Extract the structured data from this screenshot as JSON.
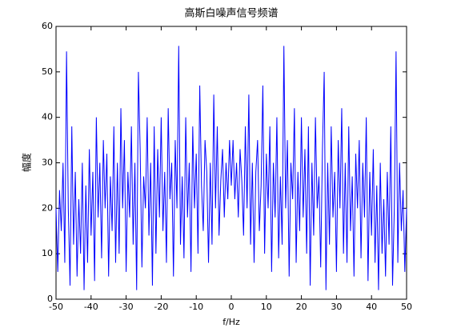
{
  "chart_data": {
    "type": "line",
    "title": "高斯白噪声信号频谱",
    "xlabel": "f/Hz",
    "ylabel": "幅度",
    "x": [
      -50,
      -49.5,
      -49,
      -48.5,
      -48,
      -47.5,
      -47,
      -46.5,
      -46,
      -45.5,
      -45,
      -44.5,
      -44,
      -43.5,
      -43,
      -42.5,
      -42,
      -41.5,
      -41,
      -40.5,
      -40,
      -39.5,
      -39,
      -38.5,
      -38,
      -37.5,
      -37,
      -36.5,
      -36,
      -35.5,
      -35,
      -34.5,
      -34,
      -33.5,
      -33,
      -32.5,
      -32,
      -31.5,
      -31,
      -30.5,
      -30,
      -29.5,
      -29,
      -28.5,
      -28,
      -27.5,
      -27,
      -26.5,
      -26,
      -25.5,
      -25,
      -24.5,
      -24,
      -23.5,
      -23,
      -22.5,
      -22,
      -21.5,
      -21,
      -20.5,
      -20,
      -19.5,
      -19,
      -18.5,
      -18,
      -17.5,
      -17,
      -16.5,
      -16,
      -15.5,
      -15,
      -14.5,
      -14,
      -13.5,
      -13,
      -12.5,
      -12,
      -11.5,
      -11,
      -10.5,
      -10,
      -9.5,
      -9,
      -8.5,
      -8,
      -7.5,
      -7,
      -6.5,
      -6,
      -5.5,
      -5,
      -4.5,
      -4,
      -3.5,
      -3,
      -2.5,
      -2,
      -1.5,
      -1,
      -0.5,
      0,
      0.5,
      1,
      1.5,
      2,
      2.5,
      3,
      3.5,
      4,
      4.5,
      5,
      5.5,
      6,
      6.5,
      7,
      7.5,
      8,
      8.5,
      9,
      9.5,
      10,
      10.5,
      11,
      11.5,
      12,
      12.5,
      13,
      13.5,
      14,
      14.5,
      15,
      15.5,
      16,
      16.5,
      17,
      17.5,
      18,
      18.5,
      19,
      19.5,
      20,
      20.5,
      21,
      21.5,
      22,
      22.5,
      23,
      23.5,
      24,
      24.5,
      25,
      25.5,
      26,
      26.5,
      27,
      27.5,
      28,
      28.5,
      29,
      29.5,
      30,
      30.5,
      31,
      31.5,
      32,
      32.5,
      33,
      33.5,
      34,
      34.5,
      35,
      35.5,
      36,
      36.5,
      37,
      37.5,
      38,
      38.5,
      39,
      39.5,
      40,
      40.5,
      41,
      41.5,
      42,
      42.5,
      43,
      43.5,
      44,
      44.5,
      45,
      45.5,
      46,
      46.5,
      47,
      47.5,
      48,
      48.5,
      49,
      49.5,
      50
    ],
    "series": [
      {
        "color": "#0000ff",
        "values": [
          20,
          6,
          24,
          15,
          30,
          8,
          54.5,
          20,
          3,
          38,
          12,
          28,
          5,
          22,
          10,
          30,
          2,
          25,
          8,
          33,
          14,
          28,
          4,
          40,
          18,
          30,
          9,
          35,
          20,
          32,
          5,
          27,
          15,
          38,
          8,
          30,
          10,
          42,
          20,
          35,
          6,
          28,
          18,
          38,
          12,
          30,
          2,
          50,
          33,
          7,
          27,
          20,
          40,
          14,
          30,
          3,
          38,
          10,
          33,
          18,
          40,
          15,
          28,
          8,
          42,
          22,
          30,
          5,
          35,
          20,
          55.7,
          12,
          27,
          9,
          40,
          18,
          30,
          6,
          38,
          20,
          32,
          10,
          47,
          25,
          15,
          35,
          28,
          8,
          30,
          12,
          45,
          20,
          38,
          14,
          26,
          33,
          18,
          30,
          22,
          35,
          25,
          35,
          22,
          30,
          18,
          33,
          26,
          14,
          38,
          20,
          45,
          12,
          30,
          8,
          28,
          35,
          15,
          25,
          47,
          10,
          32,
          20,
          38,
          6,
          30,
          18,
          40,
          9,
          27,
          12,
          55.7,
          20,
          35,
          5,
          30,
          22,
          42,
          8,
          28,
          15,
          40,
          18,
          33,
          10,
          38,
          3,
          30,
          14,
          40,
          20,
          27,
          7,
          33,
          50,
          2,
          30,
          12,
          38,
          18,
          28,
          6,
          35,
          20,
          42,
          10,
          30,
          8,
          38,
          15,
          27,
          5,
          32,
          20,
          35,
          9,
          30,
          18,
          40,
          4,
          28,
          14,
          33,
          8,
          25,
          2,
          30,
          10,
          22,
          5,
          28,
          12,
          38,
          3,
          20,
          54.5,
          8,
          30,
          15,
          24,
          6,
          20
        ]
      }
    ],
    "xlim": [
      -50,
      50
    ],
    "xticks": [
      -50,
      -40,
      -30,
      -20,
      -10,
      0,
      10,
      20,
      30,
      40,
      50
    ],
    "ylim": [
      0,
      60
    ],
    "yticks": [
      0,
      10,
      20,
      30,
      40,
      50,
      60
    ],
    "grid": false
  }
}
